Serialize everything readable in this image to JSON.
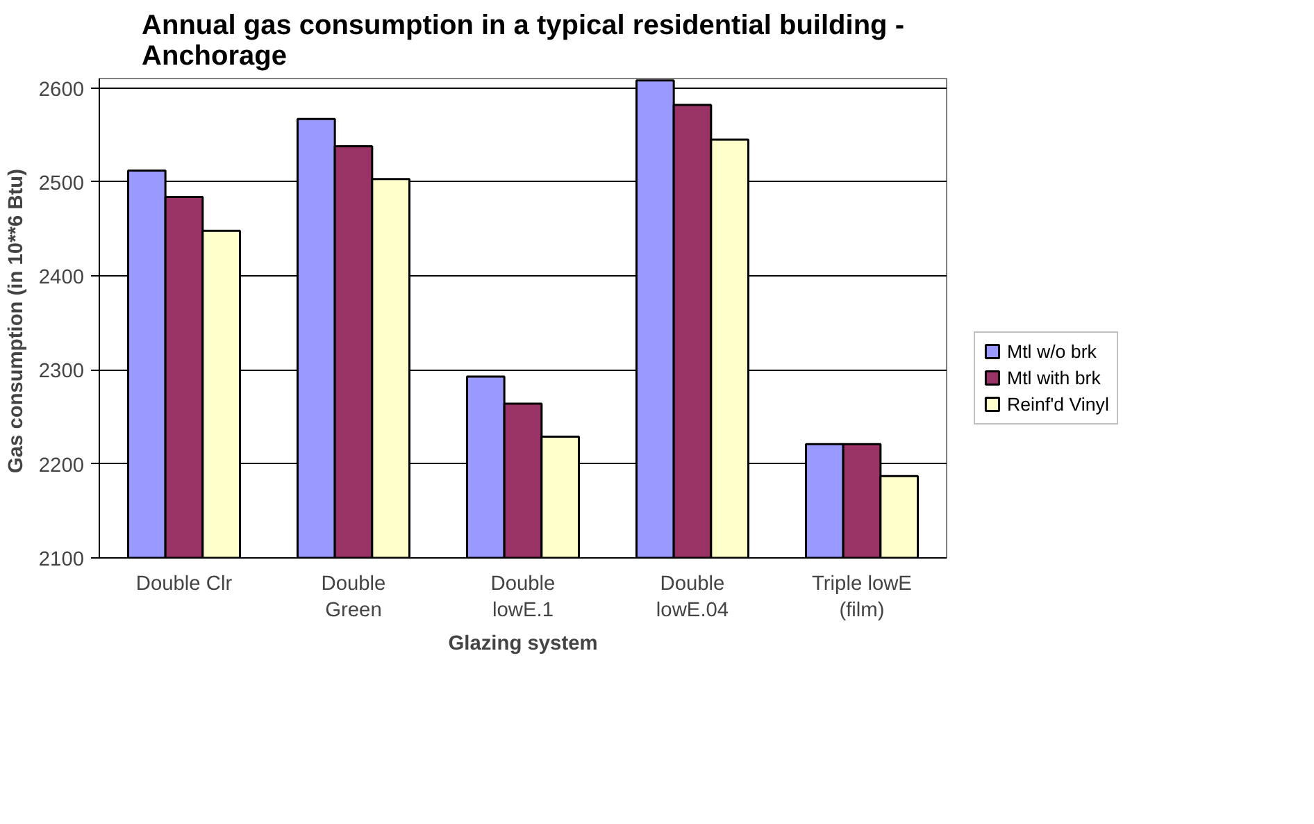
{
  "chart_data": {
    "type": "bar",
    "title": "Annual gas consumption in a typical residential building - Anchorage",
    "xlabel": "Glazing system",
    "ylabel": "Gas consumption (in 10**6  Btu)",
    "categories": [
      "Double Clr",
      "Double\nGreen",
      "Double\nlowE.1",
      "Double\nlowE.04",
      "Triple lowE\n(film)"
    ],
    "series": [
      {
        "name": "Mtl w/o brk",
        "color": "#9999ff",
        "values": [
          2512,
          2567,
          2293,
          2608,
          2221
        ]
      },
      {
        "name": "Mtl with brk",
        "color": "#993366",
        "values": [
          2484,
          2538,
          2264,
          2582,
          2221
        ]
      },
      {
        "name": "Reinf'd Vinyl",
        "color": "#ffffcc",
        "values": [
          2448,
          2503,
          2229,
          2545,
          2187
        ]
      }
    ],
    "ylim": [
      2100,
      2610
    ],
    "yticks": [
      2100,
      2200,
      2300,
      2400,
      2500,
      2600
    ],
    "grid": "y",
    "legend": "right"
  }
}
